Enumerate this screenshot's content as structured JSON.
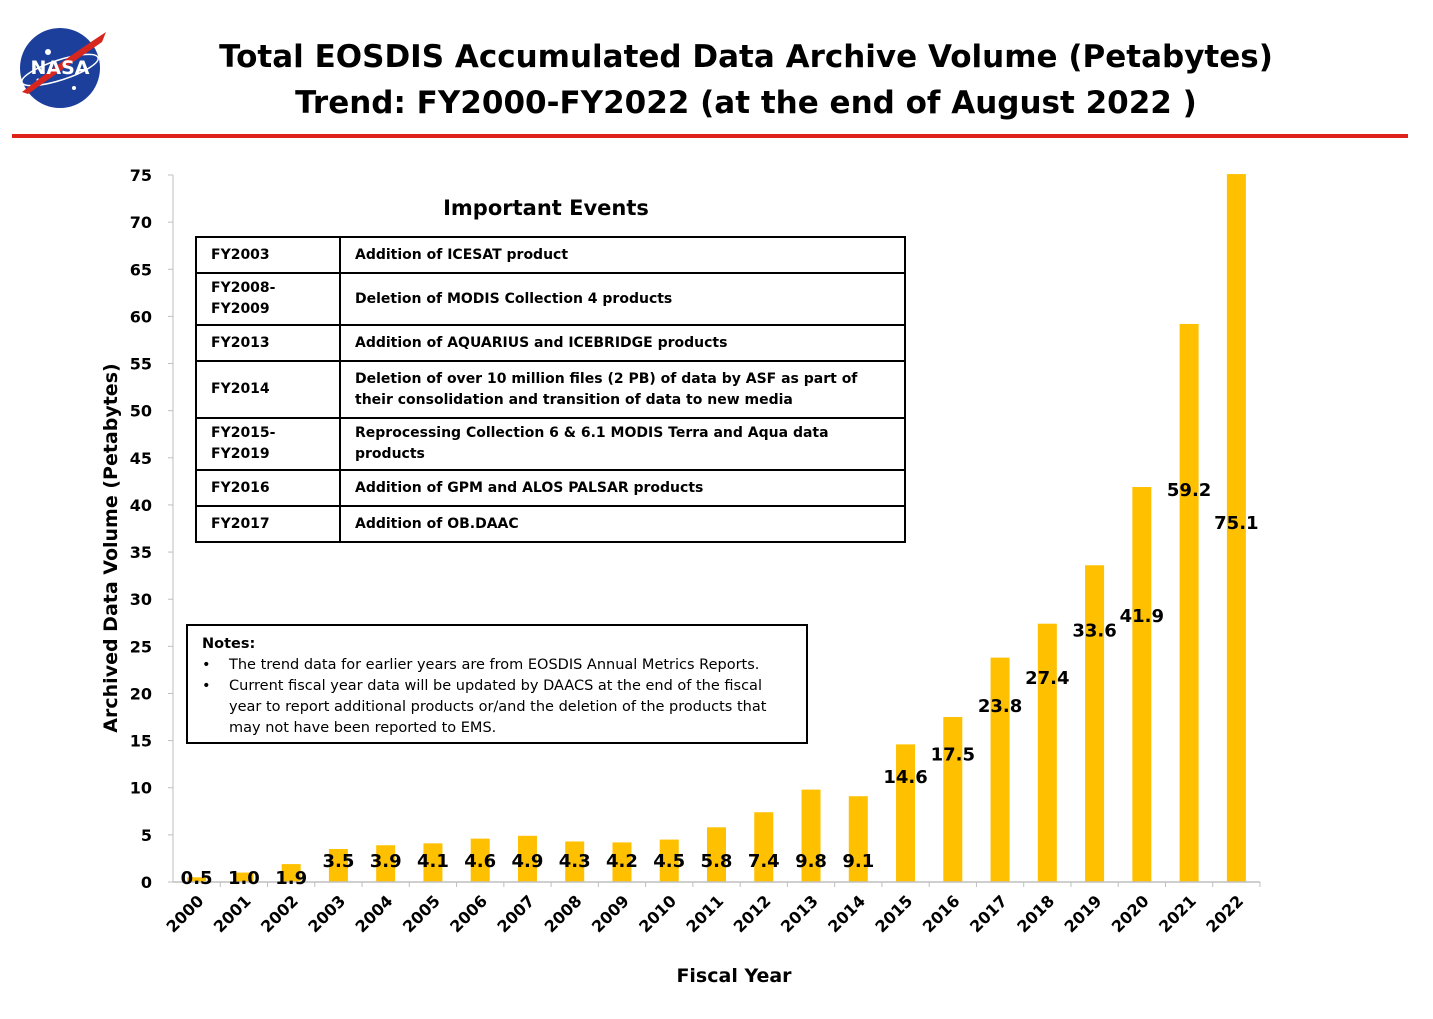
{
  "header": {
    "title_line1": "Total EOSDIS Accumulated Data Archive Volume (Petabytes)",
    "title_line2": "Trend: FY2000-FY2022 (at the end of August 2022 )",
    "logo_text": "NASA",
    "rule_color": "#e0201b"
  },
  "events": {
    "title": "Important Events",
    "rows": [
      {
        "period": "FY2003",
        "event": "Addition of ICESAT product"
      },
      {
        "period": "FY2008-FY2009",
        "event": "Deletion of  MODIS Collection 4 products"
      },
      {
        "period": "FY2013",
        "event": "Addition of AQUARIUS and ICEBRIDGE products"
      },
      {
        "period": "FY2014",
        "event": "Deletion of over 10 million files (2 PB) of data by ASF as part of their consolidation and transition of data to new media"
      },
      {
        "period": "FY2015-FY2019",
        "event": "Reprocessing  Collection 6 & 6.1 MODIS Terra and Aqua data products"
      },
      {
        "period": "FY2016",
        "event": "Addition of GPM and ALOS PALSAR products"
      },
      {
        "period": "FY2017",
        "event": "Addition of OB.DAAC"
      }
    ]
  },
  "notes": {
    "heading": "Notes:",
    "items": [
      "The trend data for earlier years are from EOSDIS Annual Metrics Reports.",
      "Current fiscal year data will be updated by DAACS at the end of the fiscal year to report additional products or/and the deletion of the products that may not have been reported to EMS."
    ]
  },
  "chart_data": {
    "type": "bar",
    "title": "Total EOSDIS Accumulated Data Archive Volume (Petabytes) Trend: FY2000-FY2022 (at the end of August 2022 )",
    "xlabel": "Fiscal Year",
    "ylabel": "Archived Data Volume (Petabytes)",
    "ylim": [
      0,
      75
    ],
    "yticks": [
      0,
      5,
      10,
      15,
      20,
      25,
      30,
      35,
      40,
      45,
      50,
      55,
      60,
      65,
      70,
      75
    ],
    "categories": [
      "2000",
      "2001",
      "2002",
      "2003",
      "2004",
      "2005",
      "2006",
      "2007",
      "2008",
      "2009",
      "2010",
      "2011",
      "2012",
      "2013",
      "2014",
      "2015",
      "2016",
      "2017",
      "2018",
      "2019",
      "2020",
      "2021",
      "2022"
    ],
    "values": [
      0.5,
      1.0,
      1.9,
      3.5,
      3.9,
      4.1,
      4.6,
      4.9,
      4.3,
      4.2,
      4.5,
      5.8,
      7.4,
      9.8,
      9.1,
      14.6,
      17.5,
      23.8,
      27.4,
      33.6,
      41.9,
      59.2,
      75.1
    ],
    "data_labels": [
      "0.5",
      "1.0",
      "1.9",
      "3.5",
      "3.9",
      "4.1",
      "4.6",
      "4.9",
      "4.3",
      "4.2",
      "4.5",
      "5.8",
      "7.4",
      "9.8",
      "9.1",
      "14.6",
      "17.5",
      "23.8",
      "27.4",
      "33.6",
      "41.9",
      "59.2",
      "75.1"
    ],
    "bar_color": "#ffc000",
    "grid": false,
    "legend": "none"
  }
}
